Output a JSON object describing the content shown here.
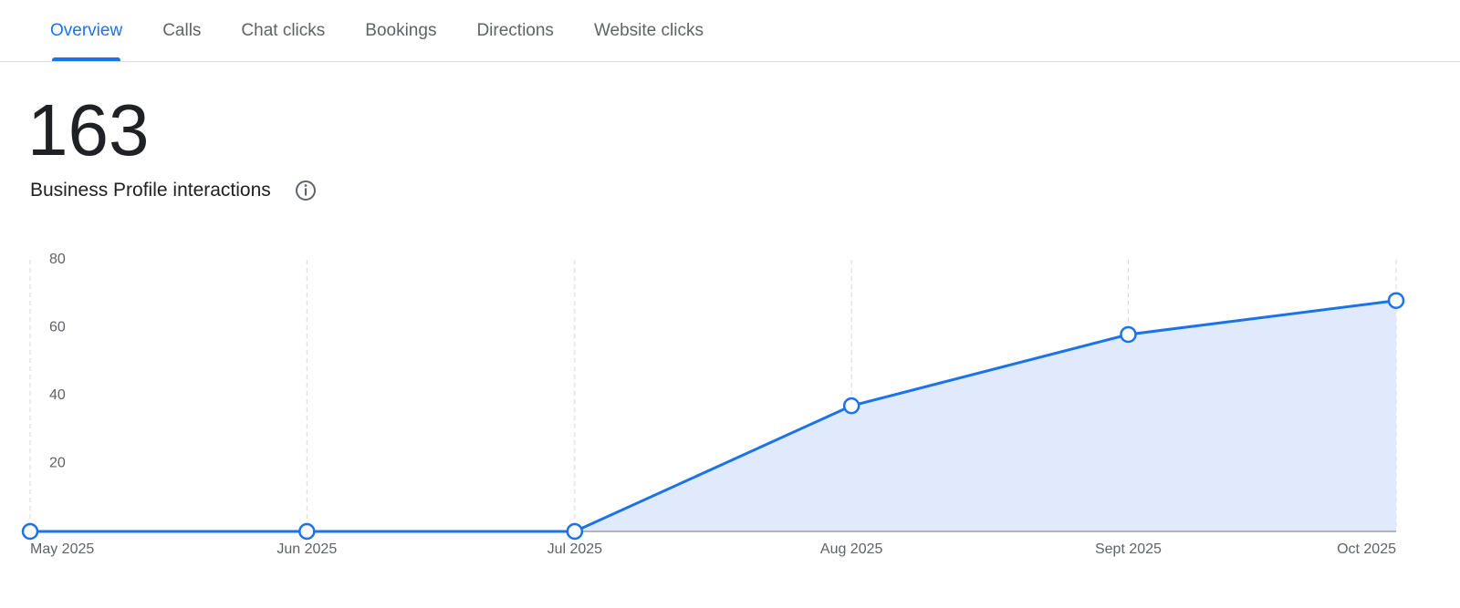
{
  "tabs": [
    "Overview",
    "Calls",
    "Chat clicks",
    "Bookings",
    "Directions",
    "Website clicks"
  ],
  "active_tab": 0,
  "summary": {
    "value": 163,
    "label": "Business Profile interactions"
  },
  "chart_data": {
    "type": "area",
    "x": [
      "2025-05",
      "2025-06",
      "2025-07",
      "2025-08",
      "2025-09",
      "2025-10"
    ],
    "xlim": [
      "2025-05",
      "2025-10"
    ],
    "xticks": [
      {
        "value": "2025-05",
        "label": "May 2025"
      },
      {
        "value": "2025-06",
        "label": "Jun 2025"
      },
      {
        "value": "2025-07",
        "label": "Jul 2025"
      },
      {
        "value": "2025-08",
        "label": "Aug 2025"
      },
      {
        "value": "2025-09",
        "label": "Sept 2025"
      },
      {
        "value": "2025-10",
        "label": "Oct 2025"
      }
    ],
    "values": [
      0,
      0,
      0,
      37,
      58,
      68
    ],
    "ylim": [
      0,
      80
    ],
    "yticks": [
      20,
      40,
      60,
      80
    ],
    "color": "#1a73e8",
    "area_color": "#e1e9fc",
    "grid": true
  }
}
